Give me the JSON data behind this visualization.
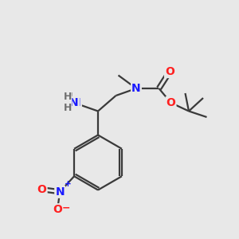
{
  "bg_color": "#e8e8e8",
  "bond_color": "#3a3a3a",
  "atom_colors": {
    "N": "#1a1aff",
    "O": "#ff2020",
    "C": "#3a3a3a",
    "H": "#707070"
  },
  "bond_width": 1.6,
  "font_size_atom": 10,
  "font_size_small": 8.5,
  "xlim": [
    0,
    10
  ],
  "ylim": [
    0,
    10
  ]
}
